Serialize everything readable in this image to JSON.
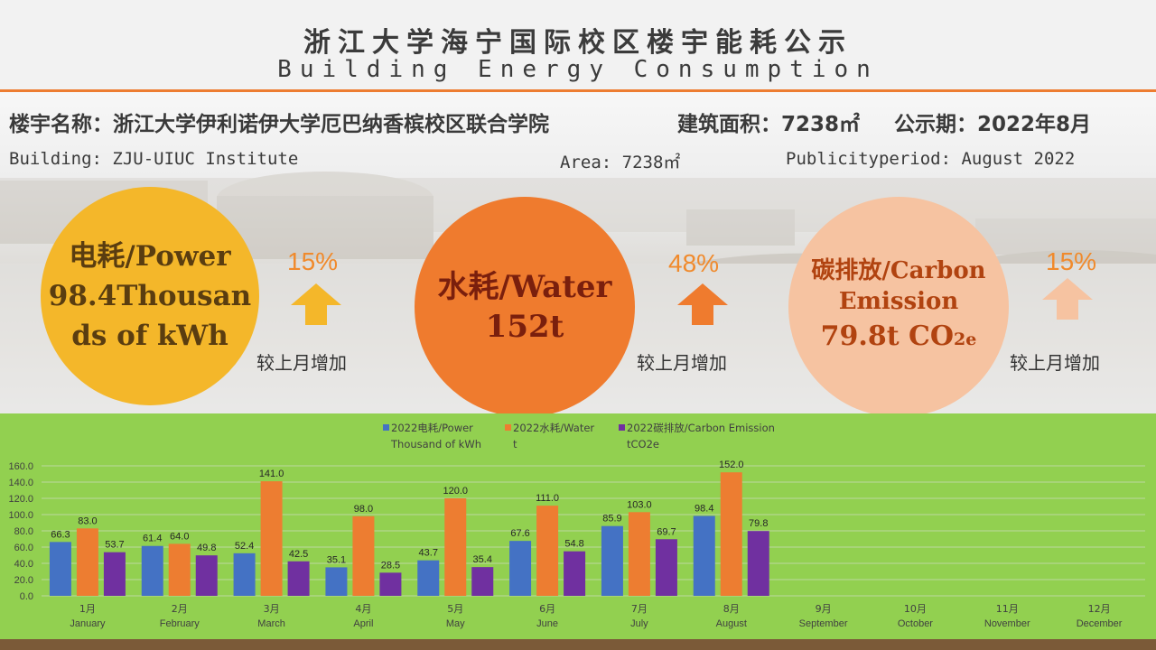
{
  "header": {
    "title_cn": "浙江大学海宁国际校区楼宇能耗公示",
    "title_en": "Building Energy Consumption"
  },
  "info": {
    "building_cn": "楼宇名称：浙江大学伊利诺伊大学厄巴纳香槟校区联合学院",
    "area_cn": "建筑面积：7238㎡",
    "period_cn": "公示期：2022年8月",
    "building_en": "Building: ZJU-UIUC Institute",
    "area_en": "Area: 7238㎡",
    "period_en": "Publicityperiod: August 2022"
  },
  "indicators": {
    "power": {
      "line1": "电耗/Power",
      "line2": "98.4Thousan",
      "line3": "ds of kWh",
      "change": "15%",
      "compare": "较上月增加",
      "color": "#f4b72a"
    },
    "water": {
      "line1": "水耗/Water",
      "line2": "152t",
      "change": "48%",
      "compare": "较上月增加",
      "color": "#ef7b2e"
    },
    "carbon": {
      "line1": "碳排放/Carbon",
      "line2": "Emission",
      "line3_value": "79.8t CO",
      "line3_sub": "2e",
      "change": "15%",
      "compare": "较上月增加",
      "color": "#f6c3a1"
    }
  },
  "chart_data": {
    "type": "bar",
    "categories_cn": [
      "1月",
      "2月",
      "3月",
      "4月",
      "5月",
      "6月",
      "7月",
      "8月",
      "9月",
      "10月",
      "11月",
      "12月"
    ],
    "categories_en": [
      "January",
      "February",
      "March",
      "April",
      "May",
      "June",
      "July",
      "August",
      "September",
      "October",
      "November",
      "December"
    ],
    "series": [
      {
        "name_line1": "2022电耗/Power",
        "name_line2": "Thousand of kWh",
        "color": "#4472c4",
        "values": [
          66.3,
          61.4,
          52.4,
          35.1,
          43.7,
          67.6,
          85.9,
          98.4,
          null,
          null,
          null,
          null
        ]
      },
      {
        "name_line1": "2022水耗/Water",
        "name_line2": "t",
        "color": "#ed7d31",
        "values": [
          83.0,
          64.0,
          141.0,
          98.0,
          120.0,
          111.0,
          103.0,
          152.0,
          null,
          null,
          null,
          null
        ]
      },
      {
        "name_line1": "2022碳排放/Carbon Emission",
        "name_line2": "tCO2e",
        "color": "#7030a0",
        "values": [
          53.7,
          49.8,
          42.5,
          28.5,
          35.4,
          54.8,
          69.7,
          79.8,
          null,
          null,
          null,
          null
        ]
      }
    ],
    "yticks": [
      "0.0",
      "20.0",
      "40.0",
      "60.0",
      "80.0",
      "100.0",
      "120.0",
      "140.0",
      "160.0"
    ],
    "ylim": [
      0,
      160
    ],
    "grid": true,
    "legend": "top"
  }
}
